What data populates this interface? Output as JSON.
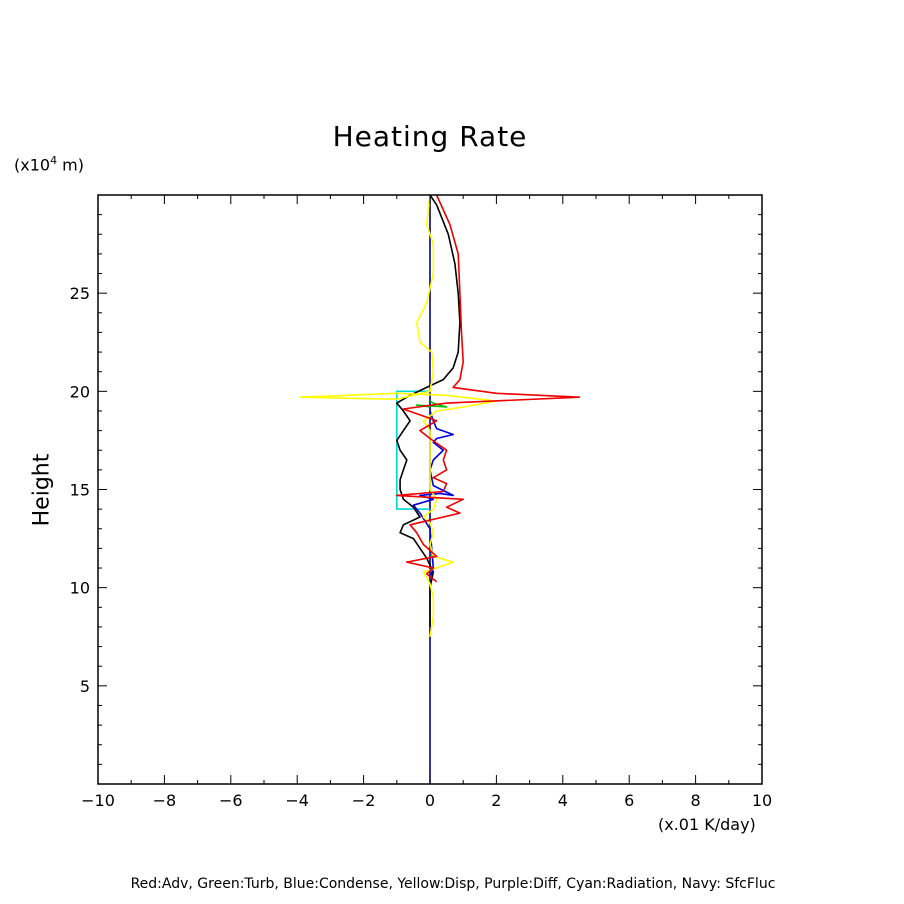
{
  "chart_data": {
    "type": "line",
    "title": "Heating Rate",
    "ylabel": "Height",
    "yunit_prefix": "(x10",
    "yunit_exp": "4",
    "yunit_suffix": " m)",
    "xunit": "(x.01 K/day)",
    "xlim": [
      -10,
      10
    ],
    "ylim": [
      0,
      30
    ],
    "xticks": [
      -10,
      -8,
      -6,
      -4,
      -2,
      0,
      2,
      4,
      6,
      8,
      10
    ],
    "xtick_labels": [
      "−10",
      "−8",
      "−6",
      "−4",
      "−2",
      "0",
      "2",
      "4",
      "6",
      "8",
      "10"
    ],
    "yticks": [
      5,
      10,
      15,
      20,
      25
    ],
    "ytick_labels": [
      "5",
      "10",
      "15",
      "20",
      "25"
    ],
    "legend": "Red:Adv, Green:Turb, Blue:Condense, Yellow:Disp, Purple:Diff, Cyan:Radiation, Navy: SfcFluc",
    "series": [
      {
        "name": "Navy: SfcFluc",
        "color": "#000080",
        "points": [
          [
            0,
            0
          ],
          [
            0,
            30
          ]
        ]
      },
      {
        "name": "Cyan:Radiation",
        "color": "#00d8d8",
        "points": [
          [
            0,
            14
          ],
          [
            -1,
            14
          ],
          [
            -1,
            20
          ],
          [
            0,
            20
          ]
        ]
      },
      {
        "name": "Green:Turb",
        "color": "#00c000",
        "points": [
          [
            0,
            19.2
          ],
          [
            -0.4,
            19.3
          ],
          [
            0.5,
            19.2
          ],
          [
            0.1,
            19.4
          ],
          [
            0,
            19.5
          ]
        ]
      },
      {
        "name": "Black",
        "color": "#000000",
        "points": [
          [
            0,
            8
          ],
          [
            0,
            10
          ],
          [
            0.1,
            10.8
          ],
          [
            -0.1,
            11.5
          ],
          [
            -0.5,
            12.5
          ],
          [
            -0.9,
            12.8
          ],
          [
            -0.8,
            13.2
          ],
          [
            -0.3,
            13.6
          ],
          [
            -0.5,
            14.1
          ],
          [
            -0.8,
            14.5
          ],
          [
            -0.9,
            15
          ],
          [
            -0.9,
            15.5
          ],
          [
            -0.8,
            16
          ],
          [
            -0.7,
            16.5
          ],
          [
            -0.9,
            17
          ],
          [
            -1.0,
            17.5
          ],
          [
            -0.8,
            18
          ],
          [
            -0.6,
            18.5
          ],
          [
            -0.8,
            19
          ],
          [
            -1.0,
            19.4
          ],
          [
            -0.6,
            19.8
          ],
          [
            -0.1,
            20.2
          ],
          [
            0.4,
            20.6
          ],
          [
            0.7,
            21.2
          ],
          [
            0.85,
            22
          ],
          [
            0.9,
            23.5
          ],
          [
            0.85,
            25
          ],
          [
            0.75,
            26.5
          ],
          [
            0.55,
            28
          ],
          [
            0.2,
            29.5
          ],
          [
            0,
            30
          ]
        ]
      },
      {
        "name": "Blue:Condense",
        "color": "#0000dd",
        "points": [
          [
            0,
            10.5
          ],
          [
            0.1,
            11
          ],
          [
            0.05,
            12
          ],
          [
            0,
            13
          ],
          [
            -0.3,
            13.8
          ],
          [
            -0.5,
            14.2
          ],
          [
            0.1,
            14.5
          ],
          [
            -0.3,
            14.7
          ],
          [
            0.3,
            14.8
          ],
          [
            0.7,
            14.7
          ],
          [
            0.1,
            15.2
          ],
          [
            0,
            16
          ],
          [
            0.1,
            16.5
          ],
          [
            0.4,
            17
          ],
          [
            0.1,
            17.4
          ],
          [
            0.2,
            17.6
          ],
          [
            0.7,
            17.8
          ],
          [
            0.2,
            18.1
          ],
          [
            0.1,
            18.5
          ],
          [
            0,
            19
          ]
        ]
      },
      {
        "name": "Yellow:Disp",
        "color": "#ffff00",
        "points": [
          [
            0,
            7.5
          ],
          [
            0.1,
            8.5
          ],
          [
            0.1,
            9.5
          ],
          [
            0,
            10.2
          ],
          [
            -0.2,
            10.8
          ],
          [
            0.2,
            11
          ],
          [
            0.7,
            11.3
          ],
          [
            0.1,
            11.6
          ],
          [
            0,
            12.2
          ],
          [
            0.1,
            12.8
          ],
          [
            0,
            13.3
          ],
          [
            -0.2,
            13.6
          ],
          [
            0.1,
            14
          ],
          [
            0.2,
            14.5
          ],
          [
            0,
            15
          ],
          [
            0,
            18
          ],
          [
            -0.2,
            18.5
          ],
          [
            0.2,
            19
          ],
          [
            1,
            19.2
          ],
          [
            2,
            19.5
          ],
          [
            0.5,
            19.8
          ],
          [
            -1,
            19.9
          ],
          [
            -3.9,
            19.7
          ],
          [
            -1,
            19.6
          ],
          [
            0,
            20
          ],
          [
            0.1,
            21
          ],
          [
            0.05,
            22
          ],
          [
            -0.3,
            22.5
          ],
          [
            -0.4,
            23.5
          ],
          [
            -0.1,
            24.5
          ],
          [
            0.1,
            26
          ],
          [
            0.1,
            27.5
          ],
          [
            -0.1,
            28.5
          ],
          [
            0,
            30
          ]
        ]
      },
      {
        "name": "Red:Adv",
        "color": "#ee0000",
        "points": [
          [
            0.2,
            10.3
          ],
          [
            -0.1,
            10.7
          ],
          [
            0.1,
            11
          ],
          [
            -0.7,
            11.3
          ],
          [
            0.2,
            11.6
          ],
          [
            -0.2,
            12.2
          ],
          [
            -0.4,
            12.8
          ],
          [
            -0.6,
            13.2
          ],
          [
            0.9,
            13.8
          ],
          [
            0.5,
            14.1
          ],
          [
            1,
            14.5
          ],
          [
            -1,
            14.7
          ],
          [
            0.4,
            14.9
          ],
          [
            0.5,
            15.3
          ],
          [
            0.1,
            15.6
          ],
          [
            0.5,
            16
          ],
          [
            0.4,
            16.5
          ],
          [
            0.5,
            17
          ],
          [
            0,
            17.6
          ],
          [
            -0.3,
            18
          ],
          [
            0.2,
            18.5
          ],
          [
            -0.8,
            19.1
          ],
          [
            0.5,
            19.4
          ],
          [
            4.5,
            19.7
          ],
          [
            2,
            19.9
          ],
          [
            0.7,
            20.2
          ],
          [
            0.9,
            20.6
          ],
          [
            1,
            21.5
          ],
          [
            0.95,
            23
          ],
          [
            0.9,
            25
          ],
          [
            0.85,
            27
          ],
          [
            0.6,
            28.5
          ],
          [
            0.2,
            30
          ]
        ]
      }
    ]
  }
}
